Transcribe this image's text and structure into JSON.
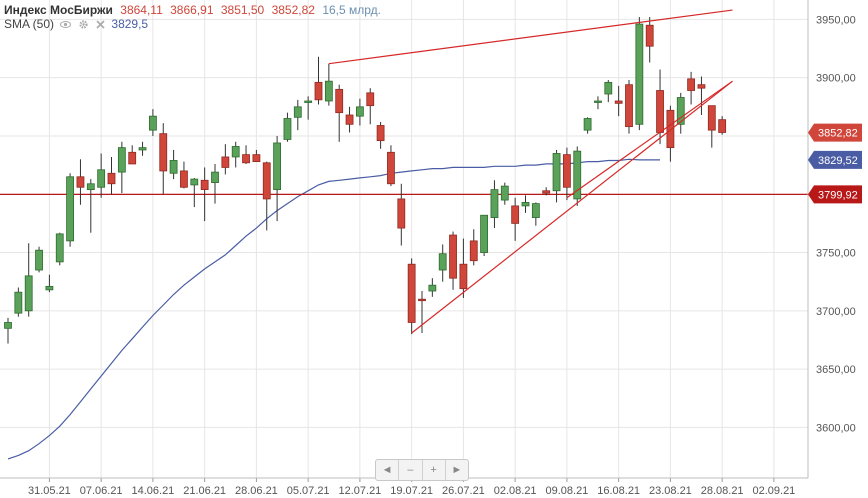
{
  "legend": {
    "title": "Индекс МосБиржи",
    "open": "3864,11",
    "high": "3866,91",
    "low": "3851,50",
    "close": "3852,82",
    "volume": "16,5 млрд.",
    "sma_label": "SMA (50)",
    "sma_value": "3829,5"
  },
  "navigator": {
    "left": "◄",
    "minus": "–",
    "plus": "+",
    "right": "►"
  },
  "colors": {
    "up": "#5aa15a",
    "down": "#d0463a",
    "sma": "#4a5da4",
    "hline": "#b81818",
    "trend": "#d62828"
  },
  "chart_data": {
    "type": "candlestick",
    "y_axis": {
      "range": [
        3570,
        3970
      ],
      "ticks": [
        3600,
        3650,
        3700,
        3750,
        3800,
        3850,
        3900,
        3950
      ],
      "tick_labels": [
        "3600,00",
        "3650,00",
        "3700,00",
        "3750,00",
        "3800,00",
        "3850,00",
        "3900,00",
        "3950,00"
      ]
    },
    "x_axis": {
      "labels": [
        "31.05.21",
        "07.06.21",
        "14.06.21",
        "21.06.21",
        "28.06.21",
        "05.07.21",
        "12.07.21",
        "19.07.21",
        "26.07.21",
        "02.08.21",
        "09.08.21",
        "16.08.21",
        "23.08.21",
        "28.08.21",
        "02.09.21"
      ],
      "label_index": [
        4,
        9,
        14,
        19,
        24,
        29,
        34,
        39,
        44,
        49,
        54,
        59,
        64,
        69,
        74
      ]
    },
    "candles": [
      {
        "o": 3685,
        "h": 3694,
        "l": 3672,
        "c": 3690
      },
      {
        "o": 3698,
        "h": 3720,
        "l": 3695,
        "c": 3716
      },
      {
        "o": 3700,
        "h": 3758,
        "l": 3695,
        "c": 3730
      },
      {
        "o": 3735,
        "h": 3755,
        "l": 3733,
        "c": 3752
      },
      {
        "o": 3718,
        "h": 3731,
        "l": 3716,
        "c": 3721
      },
      {
        "o": 3742,
        "h": 3767,
        "l": 3739,
        "c": 3766
      },
      {
        "o": 3760,
        "h": 3818,
        "l": 3755,
        "c": 3815
      },
      {
        "o": 3815,
        "h": 3830,
        "l": 3791,
        "c": 3806
      },
      {
        "o": 3804,
        "h": 3813,
        "l": 3767,
        "c": 3809
      },
      {
        "o": 3806,
        "h": 3835,
        "l": 3797,
        "c": 3821
      },
      {
        "o": 3818,
        "h": 3832,
        "l": 3800,
        "c": 3809
      },
      {
        "o": 3819,
        "h": 3845,
        "l": 3801,
        "c": 3840
      },
      {
        "o": 3836,
        "h": 3842,
        "l": 3826,
        "c": 3826
      },
      {
        "o": 3838,
        "h": 3845,
        "l": 3833,
        "c": 3840
      },
      {
        "o": 3855,
        "h": 3873,
        "l": 3850,
        "c": 3867
      },
      {
        "o": 3852,
        "h": 3861,
        "l": 3800,
        "c": 3820
      },
      {
        "o": 3818,
        "h": 3838,
        "l": 3813,
        "c": 3829
      },
      {
        "o": 3820,
        "h": 3828,
        "l": 3805,
        "c": 3806
      },
      {
        "o": 3808,
        "h": 3814,
        "l": 3789,
        "c": 3813
      },
      {
        "o": 3812,
        "h": 3823,
        "l": 3777,
        "c": 3804
      },
      {
        "o": 3810,
        "h": 3826,
        "l": 3792,
        "c": 3819
      },
      {
        "o": 3832,
        "h": 3843,
        "l": 3817,
        "c": 3823
      },
      {
        "o": 3832,
        "h": 3845,
        "l": 3823,
        "c": 3841
      },
      {
        "o": 3834,
        "h": 3842,
        "l": 3826,
        "c": 3827
      },
      {
        "o": 3834,
        "h": 3838,
        "l": 3829,
        "c": 3828
      },
      {
        "o": 3827,
        "h": 3828,
        "l": 3769,
        "c": 3796
      },
      {
        "o": 3804,
        "h": 3850,
        "l": 3777,
        "c": 3844
      },
      {
        "o": 3847,
        "h": 3870,
        "l": 3845,
        "c": 3865
      },
      {
        "o": 3866,
        "h": 3881,
        "l": 3855,
        "c": 3875
      },
      {
        "o": 3880,
        "h": 3884,
        "l": 3864,
        "c": 3880
      },
      {
        "o": 3896,
        "h": 3918,
        "l": 3877,
        "c": 3881
      },
      {
        "o": 3880,
        "h": 3912,
        "l": 3876,
        "c": 3897
      },
      {
        "o": 3890,
        "h": 3894,
        "l": 3845,
        "c": 3870
      },
      {
        "o": 3868,
        "h": 3875,
        "l": 3853,
        "c": 3860
      },
      {
        "o": 3867,
        "h": 3882,
        "l": 3859,
        "c": 3875
      },
      {
        "o": 3887,
        "h": 3891,
        "l": 3860,
        "c": 3876
      },
      {
        "o": 3859,
        "h": 3862,
        "l": 3839,
        "c": 3846
      },
      {
        "o": 3836,
        "h": 3842,
        "l": 3807,
        "c": 3809
      },
      {
        "o": 3796,
        "h": 3809,
        "l": 3756,
        "c": 3771
      },
      {
        "o": 3740,
        "h": 3745,
        "l": 3680,
        "c": 3690
      },
      {
        "o": 3710,
        "h": 3717,
        "l": 3681,
        "c": 3709
      },
      {
        "o": 3717,
        "h": 3728,
        "l": 3712,
        "c": 3722
      },
      {
        "o": 3735,
        "h": 3757,
        "l": 3725,
        "c": 3749
      },
      {
        "o": 3765,
        "h": 3768,
        "l": 3718,
        "c": 3728
      },
      {
        "o": 3740,
        "h": 3762,
        "l": 3711,
        "c": 3719
      },
      {
        "o": 3760,
        "h": 3770,
        "l": 3739,
        "c": 3743
      },
      {
        "o": 3750,
        "h": 3781,
        "l": 3747,
        "c": 3782
      },
      {
        "o": 3780,
        "h": 3812,
        "l": 3771,
        "c": 3804
      },
      {
        "o": 3795,
        "h": 3810,
        "l": 3791,
        "c": 3807
      },
      {
        "o": 3790,
        "h": 3797,
        "l": 3760,
        "c": 3775
      },
      {
        "o": 3790,
        "h": 3799,
        "l": 3784,
        "c": 3793
      },
      {
        "o": 3780,
        "h": 3793,
        "l": 3773,
        "c": 3792
      },
      {
        "o": 3803,
        "h": 3806,
        "l": 3799,
        "c": 3801
      },
      {
        "o": 3803,
        "h": 3838,
        "l": 3793,
        "c": 3835
      },
      {
        "o": 3834,
        "h": 3840,
        "l": 3795,
        "c": 3806
      },
      {
        "o": 3796,
        "h": 3841,
        "l": 3790,
        "c": 3837
      },
      {
        "o": 3855,
        "h": 3866,
        "l": 3852,
        "c": 3865
      },
      {
        "o": 3880,
        "h": 3884,
        "l": 3873,
        "c": 3880
      },
      {
        "o": 3886,
        "h": 3898,
        "l": 3879,
        "c": 3896
      },
      {
        "o": 3880,
        "h": 3893,
        "l": 3867,
        "c": 3878
      },
      {
        "o": 3894,
        "h": 3898,
        "l": 3852,
        "c": 3858
      },
      {
        "o": 3860,
        "h": 3952,
        "l": 3855,
        "c": 3946
      },
      {
        "o": 3945,
        "h": 3952,
        "l": 3913,
        "c": 3927
      },
      {
        "o": 3889,
        "h": 3907,
        "l": 3843,
        "c": 3853
      },
      {
        "o": 3872,
        "h": 3876,
        "l": 3828,
        "c": 3840
      },
      {
        "o": 3860,
        "h": 3887,
        "l": 3852,
        "c": 3883
      },
      {
        "o": 3899,
        "h": 3905,
        "l": 3877,
        "c": 3889
      },
      {
        "o": 3894,
        "h": 3901,
        "l": 3868,
        "c": 3891
      },
      {
        "o": 3876,
        "h": 3876,
        "l": 3840,
        "c": 3855
      },
      {
        "o": 3864,
        "h": 3867,
        "l": 3851,
        "c": 3853
      }
    ],
    "sma50": [
      3573,
      3576,
      3580,
      3586,
      3593,
      3601,
      3611,
      3622,
      3633,
      3644,
      3655,
      3666,
      3676,
      3686,
      3696,
      3705,
      3714,
      3722,
      3729,
      3736,
      3742,
      3748,
      3756,
      3764,
      3771,
      3779,
      3786,
      3792,
      3798,
      3803,
      3808,
      3811,
      3812,
      3813,
      3814,
      3815,
      3816,
      3818,
      3819,
      3820,
      3821,
      3822,
      3822,
      3823,
      3823,
      3823,
      3823,
      3824,
      3824,
      3824,
      3825,
      3825,
      3826,
      3826,
      3826,
      3827,
      3828,
      3828,
      3829,
      3829,
      3830,
      3829.5,
      3829.5,
      3829.5
    ],
    "sma50_start_index": 0,
    "horizontal_line": {
      "value": 3799.92,
      "label": "3799,92"
    },
    "price_labels": [
      {
        "value": 3852.82,
        "label": "3852,82",
        "color": "#d0463a"
      },
      {
        "value": 3829.52,
        "label": "3829,52",
        "color": "#4a5da4"
      },
      {
        "value": 3799.92,
        "label": "3799,92",
        "color": "#b81818"
      }
    ],
    "trendlines": [
      {
        "from": {
          "i": 31,
          "v": 3912
        },
        "to": {
          "i": 70,
          "v": 3958
        }
      },
      {
        "from": {
          "i": 39,
          "v": 3681
        },
        "to": {
          "i": 70,
          "v": 3897
        }
      },
      {
        "from": {
          "i": 54,
          "v": 3797
        },
        "to": {
          "i": 70,
          "v": 3897
        }
      }
    ]
  }
}
